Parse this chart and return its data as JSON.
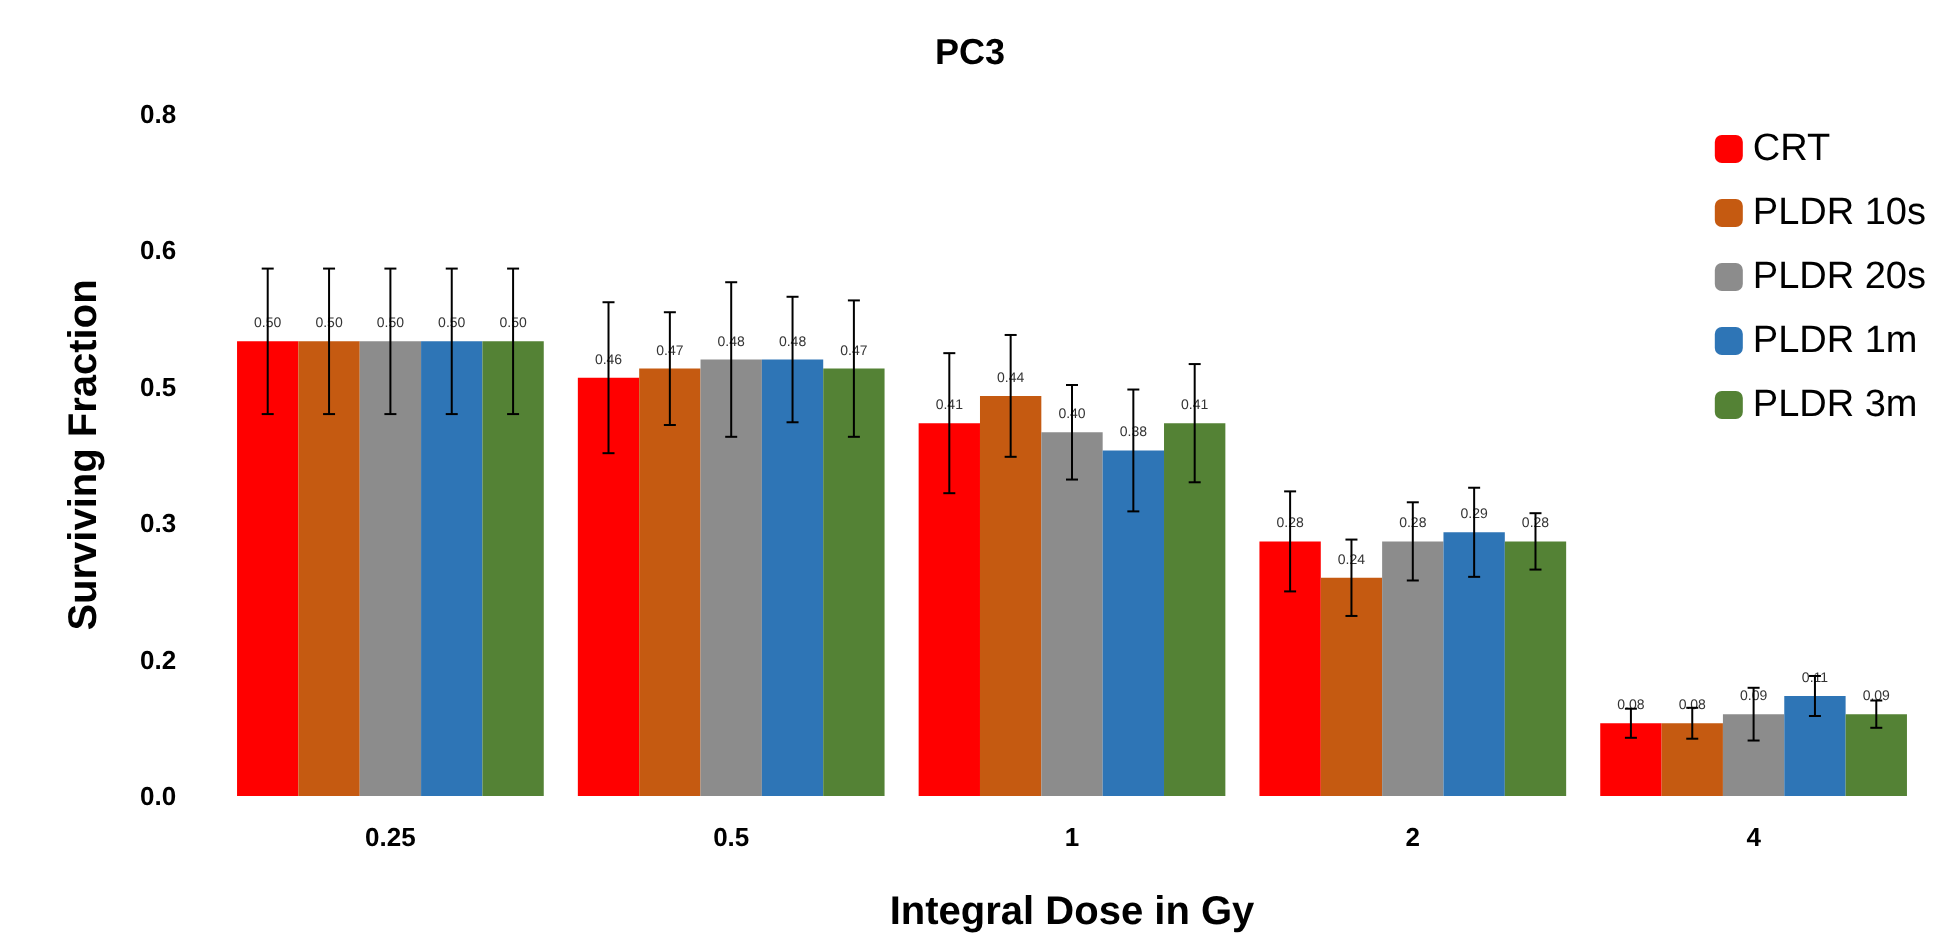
{
  "chart_data": {
    "type": "bar",
    "title": "PC3",
    "xlabel": "Integral Dose in Gy",
    "ylabel": "Surviving Fraction",
    "categories": [
      "0.25",
      "0.5",
      "1",
      "2",
      "4"
    ],
    "series": [
      {
        "name": "CRT",
        "color": "#ff0000",
        "values": [
          0.5,
          0.46,
          0.41,
          0.28,
          0.08
        ],
        "value_labels": [
          "0.50",
          "0.46",
          "0.41",
          "0.28",
          "0.08"
        ],
        "errors": [
          0.08,
          0.083,
          0.077,
          0.055,
          0.016
        ]
      },
      {
        "name": "PLDR 10s",
        "color": "#c55a11",
        "values": [
          0.5,
          0.47,
          0.44,
          0.24,
          0.08
        ],
        "value_labels": [
          "0.50",
          "0.47",
          "0.44",
          "0.24",
          "0.08"
        ],
        "errors": [
          0.08,
          0.062,
          0.067,
          0.042,
          0.017
        ]
      },
      {
        "name": "PLDR 20s",
        "color": "#8c8c8c",
        "values": [
          0.5,
          0.48,
          0.4,
          0.28,
          0.09
        ],
        "value_labels": [
          "0.50",
          "0.48",
          "0.40",
          "0.28",
          "0.09"
        ],
        "errors": [
          0.08,
          0.085,
          0.052,
          0.043,
          0.029
        ]
      },
      {
        "name": "PLDR 1m",
        "color": "#2e75b6",
        "values": [
          0.5,
          0.48,
          0.38,
          0.29,
          0.11
        ],
        "value_labels": [
          "0.50",
          "0.48",
          "0.38",
          "0.29",
          "0.11"
        ],
        "errors": [
          0.08,
          0.069,
          0.067,
          0.049,
          0.022
        ]
      },
      {
        "name": "PLDR 3m",
        "color": "#548235",
        "values": [
          0.5,
          0.47,
          0.41,
          0.28,
          0.09
        ],
        "value_labels": [
          "0.50",
          "0.47",
          "0.41",
          "0.28",
          "0.09"
        ],
        "errors": [
          0.08,
          0.075,
          0.065,
          0.031,
          0.015
        ]
      }
    ],
    "ylim": [
      0,
      0.75
    ],
    "yticks": [
      {
        "value": 0,
        "label": "0.0"
      },
      {
        "value": 0.15,
        "label": "0.2"
      },
      {
        "value": 0.3,
        "label": "0.3"
      },
      {
        "value": 0.45,
        "label": "0.5"
      },
      {
        "value": 0.6,
        "label": "0.6"
      },
      {
        "value": 0.75,
        "label": "0.8"
      }
    ],
    "grid": false,
    "legend": "top right"
  }
}
